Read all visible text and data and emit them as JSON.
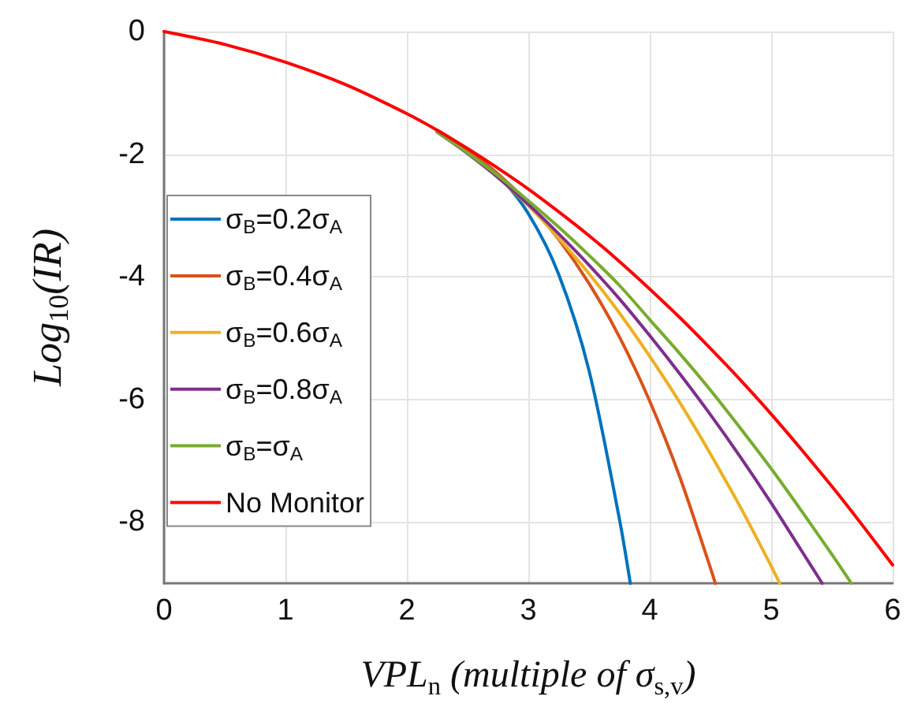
{
  "chart_data": {
    "type": "line",
    "xlabel": "VPL$_{n}$ (multiple of σ$_{s,v}$)",
    "ylabel": "Log$_{10}$(IR)",
    "xlim": [
      0,
      6
    ],
    "ylim": [
      -9,
      0
    ],
    "xticks": [
      0,
      1,
      2,
      3,
      4,
      5,
      6
    ],
    "yticks": [
      0,
      -2,
      -4,
      -6,
      -8
    ],
    "grid": true,
    "legend": "left",
    "marker": "none",
    "line_style": "solid",
    "series": [
      {
        "name": "σ$_{B}$=0.2σ$_{A}$",
        "color": "#0072bd",
        "x": [
          2.25,
          2.5,
          2.75,
          3,
          3.25,
          3.5,
          3.75,
          3.84
        ],
        "values": [
          -1.61,
          -1.93,
          -2.34,
          -2.97,
          -3.96,
          -5.53,
          -7.95,
          -9
        ]
      },
      {
        "name": "σ$_{B}$=0.4σ$_{A}$",
        "color": "#d95319",
        "x": [
          2.25,
          2.5,
          2.75,
          3,
          3.25,
          3.5,
          3.75,
          4,
          4.25,
          4.5,
          4.54
        ],
        "values": [
          -1.62,
          -1.94,
          -2.32,
          -2.8,
          -3.39,
          -4.11,
          -4.98,
          -6.03,
          -7.28,
          -8.75,
          -9
        ]
      },
      {
        "name": "σ$_{B}$=0.6σ$_{A}$",
        "color": "#edb120",
        "x": [
          2.75,
          3,
          3.25,
          3.5,
          3.75,
          4,
          4.25,
          4.5,
          4.75,
          5,
          5.07
        ],
        "values": [
          -2.38,
          -2.84,
          -3.37,
          -3.95,
          -4.59,
          -5.3,
          -6.06,
          -6.89,
          -7.77,
          -8.72,
          -9
        ]
      },
      {
        "name": "σ$_{B}$=0.8σ$_{A}$",
        "color": "#7e2f8e",
        "x": [
          2.25,
          2.5,
          2.75,
          3,
          3.25,
          3.5,
          3.75,
          4,
          4.25,
          4.5,
          4.75,
          5,
          5.25,
          5.42
        ],
        "values": [
          -1.64,
          -1.99,
          -2.38,
          -2.82,
          -3.3,
          -3.81,
          -4.36,
          -4.96,
          -5.59,
          -6.25,
          -6.95,
          -7.69,
          -8.47,
          -9
        ]
      },
      {
        "name": "σ$_{B}$=σ$_{A}$",
        "color": "#77ac30",
        "x": [
          2.25,
          2.5,
          2.75,
          3,
          3.25,
          3.5,
          3.75,
          4,
          4.25,
          4.5,
          4.75,
          5,
          5.25,
          5.5,
          5.66
        ],
        "values": [
          -1.64,
          -1.98,
          -2.35,
          -2.76,
          -3.19,
          -3.65,
          -4.14,
          -4.7,
          -5.26,
          -5.85,
          -6.48,
          -7.13,
          -7.82,
          -8.53,
          -9
        ]
      },
      {
        "name": "No Monitor",
        "color": "#ff0000",
        "x": [
          0,
          0.5,
          1,
          1.5,
          2,
          2.25,
          2.5,
          2.75,
          3,
          3.25,
          3.5,
          3.75,
          4,
          4.25,
          4.5,
          4.75,
          5,
          5.25,
          5.5,
          5.75,
          6
        ],
        "values": [
          0,
          -0.21,
          -0.5,
          -0.87,
          -1.34,
          -1.61,
          -1.91,
          -2.23,
          -2.57,
          -2.94,
          -3.33,
          -3.75,
          -4.2,
          -4.67,
          -5.17,
          -5.69,
          -6.24,
          -6.82,
          -7.42,
          -8.05,
          -8.7
        ]
      }
    ]
  }
}
